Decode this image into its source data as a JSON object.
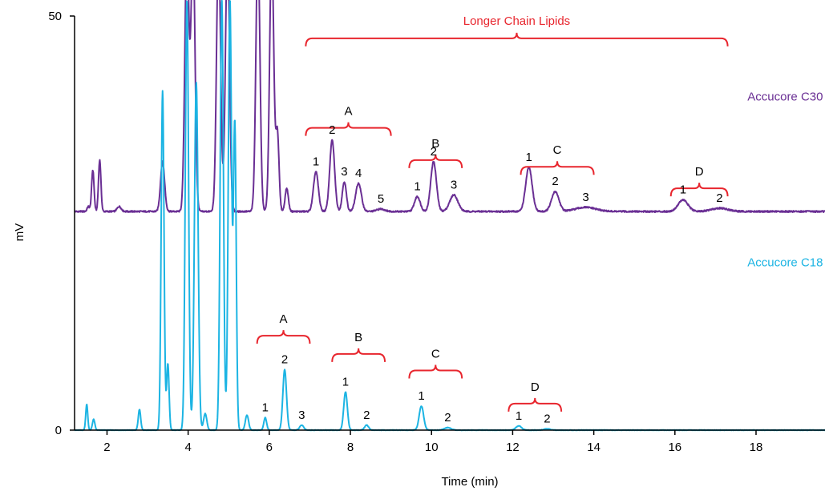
{
  "chart_data": {
    "type": "line",
    "xlabel": "Time (min)",
    "ylabel": "mV",
    "xlim": [
      1.2,
      19.7
    ],
    "ylim": [
      0,
      50
    ],
    "x_ticks": [
      2,
      4,
      6,
      8,
      10,
      12,
      14,
      16,
      18
    ],
    "y_ticks": [
      0,
      50
    ],
    "x_tick_labels": [
      "2",
      "4",
      "6",
      "8",
      "10",
      "12",
      "14",
      "16",
      "18"
    ],
    "y_tick_labels": [
      "0",
      "50"
    ],
    "grid": false,
    "colors": {
      "c30": "#6a2f94",
      "c18": "#1cb4e3",
      "annotation": "#e8262e",
      "axis": "#000000"
    },
    "overall_bracket": {
      "label": "Longer Chain Lipids",
      "x_start": 6.9,
      "x_end": 17.3,
      "y": 47.3
    },
    "series": [
      {
        "name": "Accucore C30",
        "color": "#6a2f94",
        "baseline": 26.4,
        "peaks": [
          {
            "t": 1.54,
            "h": 0.6,
            "w": 0.03
          },
          {
            "t": 1.65,
            "h": 5.0,
            "w": 0.03
          },
          {
            "t": 1.82,
            "h": 6.2,
            "w": 0.03
          },
          {
            "t": 2.3,
            "h": 0.6,
            "w": 0.05
          },
          {
            "t": 3.37,
            "h": 6.0,
            "w": 0.05
          },
          {
            "t": 3.9,
            "h": 0.6,
            "w": 0.03
          },
          {
            "t": 3.97,
            "h": 32.0,
            "w": 0.05
          },
          {
            "t": 4.12,
            "h": 32.0,
            "w": 0.05
          },
          {
            "t": 4.75,
            "h": 32.0,
            "w": 0.05
          },
          {
            "t": 4.97,
            "h": 32.0,
            "w": 0.05
          },
          {
            "t": 5.72,
            "h": 32.0,
            "w": 0.05
          },
          {
            "t": 6.06,
            "h": 32.0,
            "w": 0.05
          },
          {
            "t": 6.2,
            "h": 9.5,
            "w": 0.04
          },
          {
            "t": 6.43,
            "h": 2.8,
            "w": 0.04
          },
          {
            "t": 7.15,
            "h": 4.8,
            "w": 0.06
          },
          {
            "t": 7.55,
            "h": 8.6,
            "w": 0.06
          },
          {
            "t": 7.85,
            "h": 3.6,
            "w": 0.05
          },
          {
            "t": 8.2,
            "h": 3.4,
            "w": 0.07
          },
          {
            "t": 8.75,
            "h": 0.3,
            "w": 0.1
          },
          {
            "t": 9.65,
            "h": 1.8,
            "w": 0.07
          },
          {
            "t": 10.05,
            "h": 6.0,
            "w": 0.07
          },
          {
            "t": 10.55,
            "h": 2.0,
            "w": 0.1
          },
          {
            "t": 12.4,
            "h": 5.3,
            "w": 0.08
          },
          {
            "t": 13.05,
            "h": 2.4,
            "w": 0.09
          },
          {
            "t": 13.8,
            "h": 0.5,
            "w": 0.25
          },
          {
            "t": 16.2,
            "h": 1.4,
            "w": 0.12
          },
          {
            "t": 17.1,
            "h": 0.4,
            "w": 0.2
          }
        ],
        "label": {
          "text": "Accucore C30",
          "x": 19.65,
          "y": 39.8
        },
        "groups": [
          {
            "label": "A",
            "x_start": 6.9,
            "x_end": 9.0,
            "y": 36.5,
            "peaks": [
              {
                "label": "1",
                "t": 7.15
              },
              {
                "label": "2",
                "t": 7.55
              },
              {
                "label": "3",
                "t": 7.85
              },
              {
                "label": "4",
                "t": 8.2
              },
              {
                "label": "5",
                "t": 8.75
              }
            ]
          },
          {
            "label": "B",
            "x_start": 9.45,
            "x_end": 10.75,
            "y": 32.6,
            "peaks": [
              {
                "label": "1",
                "t": 9.65
              },
              {
                "label": "2",
                "t": 10.05
              },
              {
                "label": "3",
                "t": 10.55
              }
            ]
          },
          {
            "label": "C",
            "x_start": 12.2,
            "x_end": 14.0,
            "y": 31.8,
            "peaks": [
              {
                "label": "1",
                "t": 12.4
              },
              {
                "label": "2",
                "t": 13.05
              },
              {
                "label": "3",
                "t": 13.8
              }
            ]
          },
          {
            "label": "D",
            "x_start": 15.9,
            "x_end": 17.3,
            "y": 29.2,
            "peaks": [
              {
                "label": "1",
                "t": 16.2
              },
              {
                "label": "2",
                "t": 17.1
              }
            ]
          }
        ]
      },
      {
        "name": "Accucore C18",
        "color": "#1cb4e3",
        "baseline": 0.0,
        "peaks": [
          {
            "t": 1.5,
            "h": 3.1,
            "w": 0.025
          },
          {
            "t": 1.67,
            "h": 1.3,
            "w": 0.03
          },
          {
            "t": 2.8,
            "h": 2.5,
            "w": 0.03
          },
          {
            "t": 3.37,
            "h": 41.0,
            "w": 0.035
          },
          {
            "t": 3.5,
            "h": 8.0,
            "w": 0.03
          },
          {
            "t": 3.97,
            "h": 52.0,
            "w": 0.04
          },
          {
            "t": 4.2,
            "h": 42.0,
            "w": 0.045
          },
          {
            "t": 4.42,
            "h": 2.0,
            "w": 0.04
          },
          {
            "t": 4.83,
            "h": 52.0,
            "w": 0.04
          },
          {
            "t": 5.03,
            "h": 52.0,
            "w": 0.04
          },
          {
            "t": 5.15,
            "h": 37.0,
            "w": 0.035
          },
          {
            "t": 5.45,
            "h": 1.8,
            "w": 0.04
          },
          {
            "t": 5.9,
            "h": 1.5,
            "w": 0.035
          },
          {
            "t": 6.38,
            "h": 7.3,
            "w": 0.045
          },
          {
            "t": 6.8,
            "h": 0.6,
            "w": 0.05
          },
          {
            "t": 7.88,
            "h": 4.6,
            "w": 0.045
          },
          {
            "t": 8.4,
            "h": 0.6,
            "w": 0.05
          },
          {
            "t": 9.75,
            "h": 2.9,
            "w": 0.055
          },
          {
            "t": 10.4,
            "h": 0.3,
            "w": 0.08
          },
          {
            "t": 12.15,
            "h": 0.5,
            "w": 0.07
          },
          {
            "t": 12.85,
            "h": 0.15,
            "w": 0.08
          }
        ],
        "label": {
          "text": "Accucore C18",
          "x": 19.65,
          "y": 19.8
        },
        "groups": [
          {
            "label": "A",
            "x_start": 5.7,
            "x_end": 7.0,
            "y": 11.4,
            "peaks": [
              {
                "label": "1",
                "t": 5.9
              },
              {
                "label": "2",
                "t": 6.38
              },
              {
                "label": "3",
                "t": 6.8
              }
            ]
          },
          {
            "label": "B",
            "x_start": 7.55,
            "x_end": 8.85,
            "y": 9.2,
            "peaks": [
              {
                "label": "1",
                "t": 7.88
              },
              {
                "label": "2",
                "t": 8.4
              }
            ]
          },
          {
            "label": "C",
            "x_start": 9.45,
            "x_end": 10.75,
            "y": 7.2,
            "peaks": [
              {
                "label": "1",
                "t": 9.75
              },
              {
                "label": "2",
                "t": 10.4
              }
            ]
          },
          {
            "label": "D",
            "x_start": 11.9,
            "x_end": 13.2,
            "y": 3.2,
            "peaks": [
              {
                "label": "1",
                "t": 12.15
              },
              {
                "label": "2",
                "t": 12.85
              }
            ]
          }
        ]
      }
    ]
  }
}
